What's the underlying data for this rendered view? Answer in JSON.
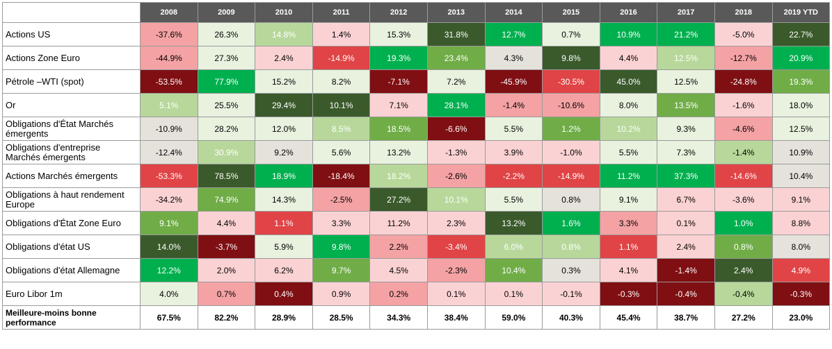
{
  "table": {
    "headers": [
      "2008",
      "2009",
      "2010",
      "2011",
      "2012",
      "2013",
      "2014",
      "2015",
      "2016",
      "2017",
      "2018",
      "2019 YTD"
    ],
    "rows": [
      {
        "label": "Actions US",
        "values": [
          "-37.6%",
          "26.3%",
          "14.8%",
          "1.4%",
          "15.3%",
          "31.8%",
          "12.7%",
          "0.7%",
          "10.9%",
          "21.2%",
          "-5.0%",
          "22.7%"
        ]
      },
      {
        "label": "Actions Zone Euro",
        "values": [
          "-44.9%",
          "27.3%",
          "2.4%",
          "-14.9%",
          "19.3%",
          "23.4%",
          "4.3%",
          "9.8%",
          "4.4%",
          "12.5%",
          "-12.7%",
          "20.9%"
        ]
      },
      {
        "label": "Pétrole –WTI (spot)",
        "values": [
          "-53.5%",
          "77.9%",
          "15.2%",
          "8.2%",
          "-7.1%",
          "7.2%",
          "-45.9%",
          "-30.5%",
          "45.0%",
          "12.5%",
          "-24.8%",
          "19.3%"
        ]
      },
      {
        "label": "Or",
        "values": [
          "5.1%",
          "25.5%",
          "29.4%",
          "10.1%",
          "7.1%",
          "28.1%",
          "-1.4%",
          "-10.6%",
          "8.0%",
          "13.5%",
          "-1.6%",
          "18.0%"
        ]
      },
      {
        "label": "Obligations d'État Marchés émergents",
        "values": [
          "-10.9%",
          "28.2%",
          "12.0%",
          "8.5%",
          "18.5%",
          "-6.6%",
          "5.5%",
          "1.2%",
          "10.2%",
          "9.3%",
          "-4.6%",
          "12.5%"
        ]
      },
      {
        "label": "Obligations d'entreprise Marchés émergents",
        "values": [
          "-12.4%",
          "30.9%",
          "9.2%",
          "5.6%",
          "13.2%",
          "-1.3%",
          "3.9%",
          "-1.0%",
          "5.5%",
          "7.3%",
          "-1.4%",
          "10.9%"
        ]
      },
      {
        "label": "Actions Marchés émergents",
        "values": [
          "-53.3%",
          "78.5%",
          "18.9%",
          "-18.4%",
          "18.2%",
          "-2.6%",
          "-2.2%",
          "-14.9%",
          "11.2%",
          "37.3%",
          "-14.6%",
          "10.4%"
        ]
      },
      {
        "label": "Obligations à haut rendement Europe",
        "values": [
          "-34.2%",
          "74.9%",
          "14.3%",
          "-2.5%",
          "27.2%",
          "10.1%",
          "5.5%",
          "0.8%",
          "9.1%",
          "6.7%",
          "-3.6%",
          "9.1%"
        ]
      },
      {
        "label": "Obligations d'État Zone Euro",
        "values": [
          "9.1%",
          "4.4%",
          "1.1%",
          "3.3%",
          "11.2%",
          "2.3%",
          "13.2%",
          "1.6%",
          "3.3%",
          "0.1%",
          "1.0%",
          "8.8%"
        ]
      },
      {
        "label": "Obligations d'état US",
        "values": [
          "14.0%",
          "-3.7%",
          "5.9%",
          "9.8%",
          "2.2%",
          "-3.4%",
          "6.0%",
          "0.8%",
          "1.1%",
          "2.4%",
          "0.8%",
          "8.0%"
        ]
      },
      {
        "label": "Obligations d'état Allemagne",
        "values": [
          "12.2%",
          "2.0%",
          "6.2%",
          "9.7%",
          "4.5%",
          "-2.3%",
          "10.4%",
          "0.3%",
          "4.1%",
          "-1.4%",
          "2.4%",
          "4.9%"
        ]
      },
      {
        "label": "Euro Libor 1m",
        "values": [
          "4.0%",
          "0.7%",
          "0.4%",
          "0.9%",
          "0.2%",
          "0.1%",
          "0.1%",
          "-0.1%",
          "-0.3%",
          "-0.4%",
          "-0.4%",
          "-0.3%"
        ]
      }
    ],
    "summary": {
      "label": "Meilleure-moins bonne performance",
      "values": [
        "67.5%",
        "82.2%",
        "28.9%",
        "28.5%",
        "34.3%",
        "38.4%",
        "59.0%",
        "40.3%",
        "45.4%",
        "38.7%",
        "27.2%",
        "23.0%"
      ]
    },
    "colors": [
      [
        "c-r1",
        "c-g0",
        "c-g1",
        "c-r0",
        "c-g0",
        "c-g4",
        "c-g3",
        "c-g0",
        "c-g3",
        "c-g3",
        "c-r0",
        "c-g4"
      ],
      [
        "c-r1",
        "c-g0",
        "c-r0",
        "c-r2",
        "c-g3",
        "c-g2",
        "c-n",
        "c-g4",
        "c-r0",
        "c-g1",
        "c-r1",
        "c-g3"
      ],
      [
        "c-r3",
        "c-g3",
        "c-g0",
        "c-g0",
        "c-r3",
        "c-g0",
        "c-r3",
        "c-r2",
        "c-g4",
        "c-g0",
        "c-r3",
        "c-g2"
      ],
      [
        "c-g1",
        "c-g0",
        "c-g4",
        "c-g4",
        "c-r0",
        "c-g3",
        "c-r1",
        "c-r1",
        "c-g0",
        "c-g2",
        "c-r0",
        "c-g0"
      ],
      [
        "c-n",
        "c-g0",
        "c-g0",
        "c-g1",
        "c-g2",
        "c-r3",
        "c-g0",
        "c-g2",
        "c-g1",
        "c-g0",
        "c-r1",
        "c-g0"
      ],
      [
        "c-n",
        "c-g1",
        "c-n",
        "c-g0",
        "c-g0",
        "c-r0",
        "c-r0",
        "c-r0",
        "c-g0",
        "c-g0",
        "c-g1d",
        "c-n"
      ],
      [
        "c-r2",
        "c-g4",
        "c-g3",
        "c-r3",
        "c-g1",
        "c-r1",
        "c-r2",
        "c-r2",
        "c-g3",
        "c-g3",
        "c-r2",
        "c-n"
      ],
      [
        "c-r0",
        "c-g2",
        "c-g0",
        "c-r1",
        "c-g4",
        "c-g1",
        "c-g0",
        "c-n",
        "c-g0",
        "c-r0",
        "c-r0",
        "c-r0"
      ],
      [
        "c-g2",
        "c-r0",
        "c-r2",
        "c-r0",
        "c-r0",
        "c-r0",
        "c-g4",
        "c-g3",
        "c-r1",
        "c-r0",
        "c-g3",
        "c-r0"
      ],
      [
        "c-g4",
        "c-r3",
        "c-g0",
        "c-g3",
        "c-r1",
        "c-r2",
        "c-g1",
        "c-g1",
        "c-r2",
        "c-r0",
        "c-g2",
        "c-n"
      ],
      [
        "c-g3",
        "c-r0",
        "c-r0",
        "c-g2",
        "c-r0",
        "c-r1",
        "c-g2",
        "c-n",
        "c-r0",
        "c-r3",
        "c-g4",
        "c-r2"
      ],
      [
        "c-g0",
        "c-r1",
        "c-r3",
        "c-r0",
        "c-r1",
        "c-r0",
        "c-r0",
        "c-r0",
        "c-r3",
        "c-r3",
        "c-g1d",
        "c-r3"
      ]
    ]
  }
}
